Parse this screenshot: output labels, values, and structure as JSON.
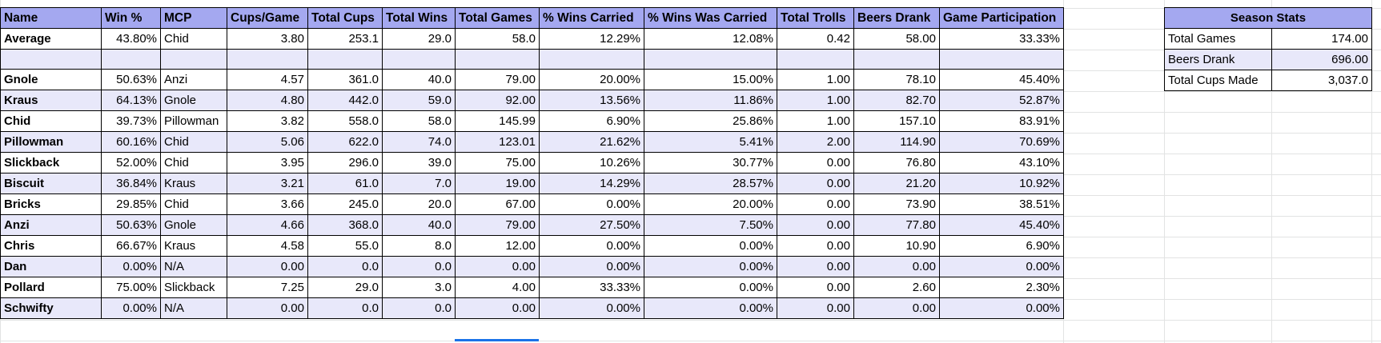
{
  "headers": [
    "Name",
    "Win %",
    "MCP",
    "Cups/Game",
    "Total Cups",
    "Total Wins",
    "Total Games",
    "% Wins Carried",
    "% Wins Was Carried",
    "Total Trolls",
    "Beers Drank",
    "Game Participation"
  ],
  "average": [
    "Average",
    "43.80%",
    "Chid",
    "3.80",
    "253.1",
    "29.0",
    "58.0",
    "12.29%",
    "12.08%",
    "0.42",
    "58.00",
    "33.33%"
  ],
  "players": [
    [
      "Gnole",
      "50.63%",
      "Anzi",
      "4.57",
      "361.0",
      "40.0",
      "79.00",
      "20.00%",
      "15.00%",
      "1.00",
      "78.10",
      "45.40%"
    ],
    [
      "Kraus",
      "64.13%",
      "Gnole",
      "4.80",
      "442.0",
      "59.0",
      "92.00",
      "13.56%",
      "11.86%",
      "1.00",
      "82.70",
      "52.87%"
    ],
    [
      "Chid",
      "39.73%",
      "Pillowman",
      "3.82",
      "558.0",
      "58.0",
      "145.99",
      "6.90%",
      "25.86%",
      "1.00",
      "157.10",
      "83.91%"
    ],
    [
      "Pillowman",
      "60.16%",
      "Chid",
      "5.06",
      "622.0",
      "74.0",
      "123.01",
      "21.62%",
      "5.41%",
      "2.00",
      "114.90",
      "70.69%"
    ],
    [
      "Slickback",
      "52.00%",
      "Chid",
      "3.95",
      "296.0",
      "39.0",
      "75.00",
      "10.26%",
      "30.77%",
      "0.00",
      "76.80",
      "43.10%"
    ],
    [
      "Biscuit",
      "36.84%",
      "Kraus",
      "3.21",
      "61.0",
      "7.0",
      "19.00",
      "14.29%",
      "28.57%",
      "0.00",
      "21.20",
      "10.92%"
    ],
    [
      "Bricks",
      "29.85%",
      "Chid",
      "3.66",
      "245.0",
      "20.0",
      "67.00",
      "0.00%",
      "20.00%",
      "0.00",
      "73.90",
      "38.51%"
    ],
    [
      "Anzi",
      "50.63%",
      "Gnole",
      "4.66",
      "368.0",
      "40.0",
      "79.00",
      "27.50%",
      "7.50%",
      "0.00",
      "77.80",
      "45.40%"
    ],
    [
      "Chris",
      "66.67%",
      "Kraus",
      "4.58",
      "55.0",
      "8.0",
      "12.00",
      "0.00%",
      "0.00%",
      "0.00",
      "10.90",
      "6.90%"
    ],
    [
      "Dan",
      "0.00%",
      "N/A",
      "0.00",
      "0.0",
      "0.0",
      "0.00",
      "0.00%",
      "0.00%",
      "0.00",
      "0.00",
      "0.00%"
    ],
    [
      "Pollard",
      "75.00%",
      "Slickback",
      "7.25",
      "29.0",
      "3.0",
      "4.00",
      "33.33%",
      "0.00%",
      "0.00",
      "2.60",
      "2.30%"
    ],
    [
      "Schwifty",
      "0.00%",
      "N/A",
      "0.00",
      "0.0",
      "0.0",
      "0.00",
      "0.00%",
      "0.00%",
      "0.00",
      "0.00",
      "0.00%"
    ]
  ],
  "season_stats": {
    "title": "Season Stats",
    "rows": [
      [
        "Total Games",
        "174.00"
      ],
      [
        "Beers Drank",
        "696.00"
      ],
      [
        "Total Cups Made",
        "3,037.0"
      ]
    ]
  }
}
